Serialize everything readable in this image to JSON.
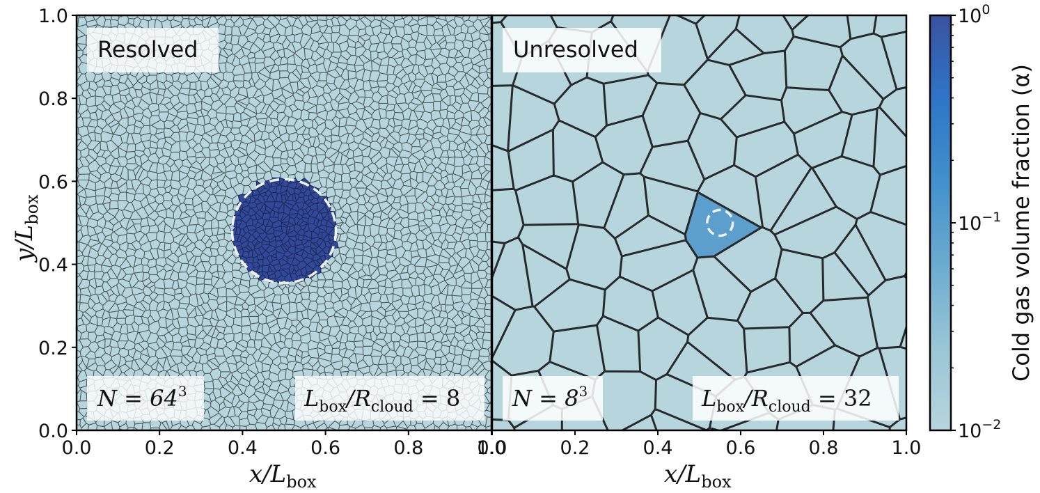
{
  "panels": [
    {
      "label": "Resolved",
      "n_base": "N = 64",
      "n_exp": "3",
      "ratio_lhs": "L",
      "ratio_lhs_sub": "box",
      "ratio_mid": "/R",
      "ratio_mid_sub": "cloud",
      "ratio_rhs": " = 8",
      "mesh": "fine",
      "cloud_center": [
        0.5,
        0.48
      ],
      "cloud_radius": 0.125
    },
    {
      "label": "Unresolved",
      "n_base": "N = 8",
      "n_exp": "3",
      "ratio_lhs": "L",
      "ratio_lhs_sub": "box",
      "ratio_mid": "/R",
      "ratio_mid_sub": "cloud",
      "ratio_rhs": " = 32",
      "mesh": "coarse",
      "cloud_center": [
        0.55,
        0.5
      ],
      "cloud_radius": 0.031
    }
  ],
  "axes": {
    "x_ticks": [
      "0.0",
      "0.2",
      "0.4",
      "0.6",
      "0.8",
      "1.0"
    ],
    "x_ticks_second": [
      "0.0",
      "0.2",
      "0.4",
      "0.6",
      "0.8",
      "1.0"
    ],
    "y_ticks": [
      "0.0",
      "0.2",
      "0.4",
      "0.6",
      "0.8",
      "1.0"
    ],
    "xlabel_var": "x",
    "xlabel_div": "/L",
    "xlabel_sub": "box",
    "ylabel_var": "y",
    "ylabel_div": "/L",
    "ylabel_sub": "box"
  },
  "colorbar": {
    "label": "Cold gas volume fraction (α)",
    "ticks": [
      {
        "base": "10",
        "exp": "0",
        "value": 1
      },
      {
        "base": "10",
        "exp": "−1",
        "value": 0.1
      },
      {
        "base": "10",
        "exp": "−2",
        "value": 0.01
      }
    ],
    "scale": "log",
    "colors": [
      "#b7d5dc",
      "#8fbfd2",
      "#5b9fcc",
      "#2f7fc9",
      "#3263bd",
      "#3a52a0"
    ]
  },
  "colors": {
    "background_cell": "#b7d5dc",
    "fine_cloud": "#32489a",
    "coarse_cloud_cell": "#5d9fcc",
    "cell_edge": "#2a2a2a"
  }
}
